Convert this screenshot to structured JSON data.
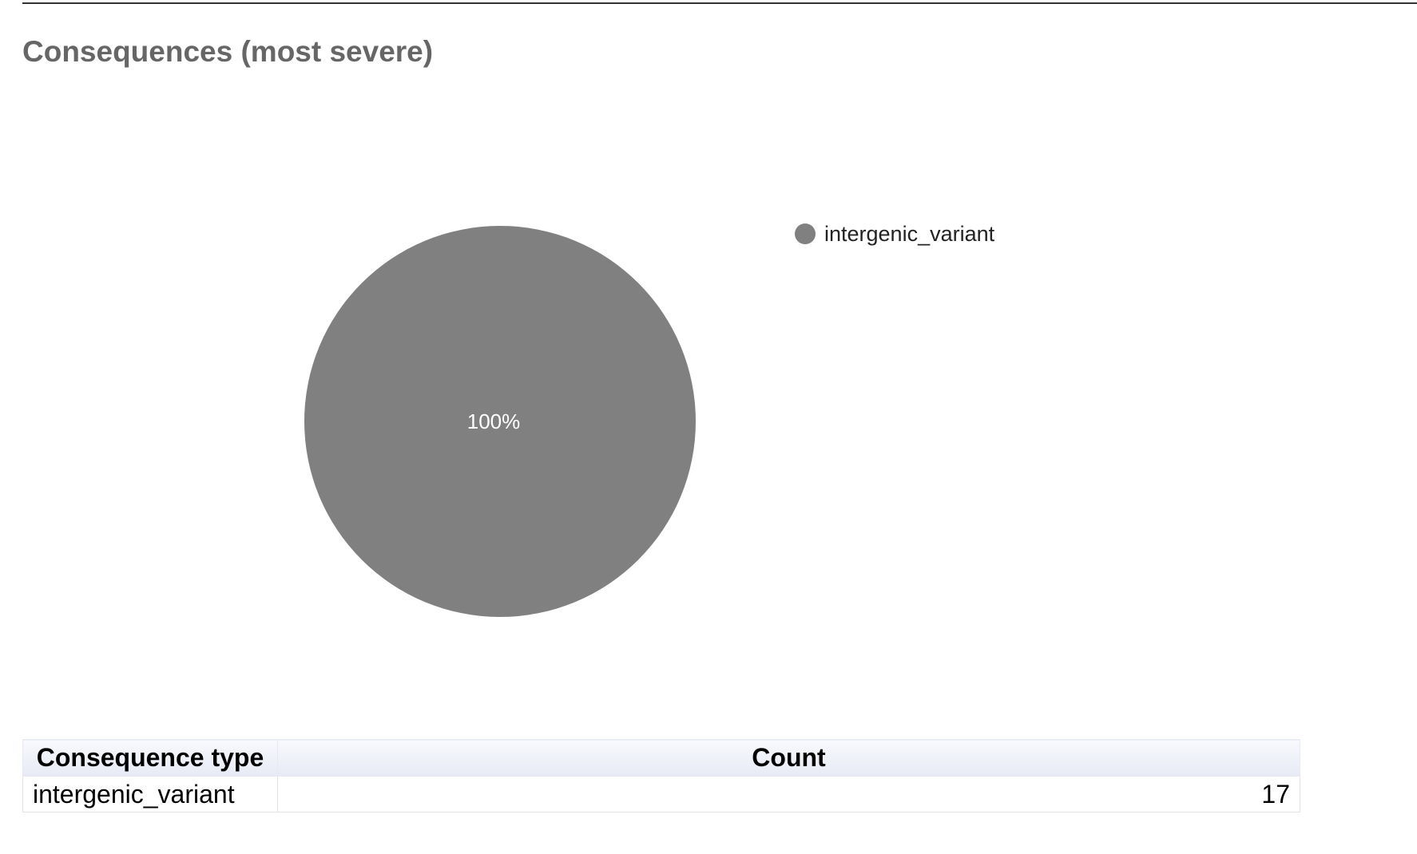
{
  "page": {
    "title": "Consequences (most severe)"
  },
  "chart_data": {
    "type": "pie",
    "labels": [
      "intergenic_variant"
    ],
    "values": [
      17
    ],
    "slice_labels": [
      "100%"
    ],
    "colors": [
      "#808080"
    ],
    "legend_position": "right"
  },
  "table": {
    "headers": [
      "Consequence type",
      "Count"
    ],
    "rows": [
      [
        "intergenic_variant",
        "17"
      ]
    ]
  }
}
